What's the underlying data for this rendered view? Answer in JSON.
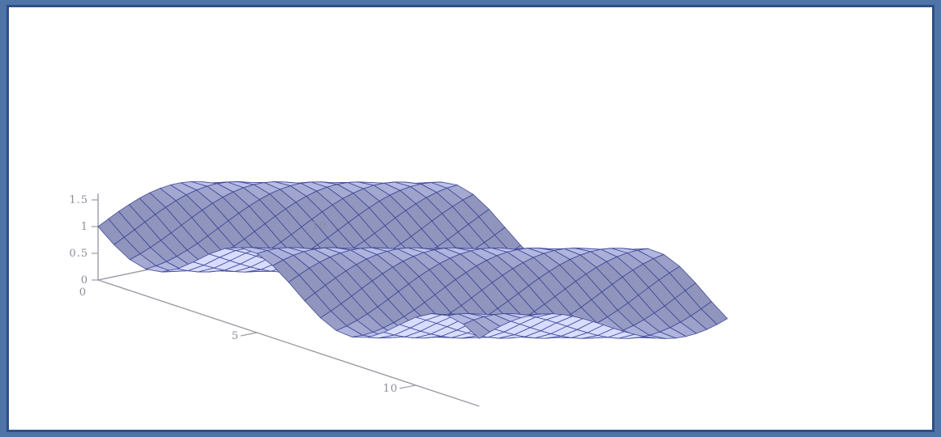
{
  "chart_data": {
    "type": "surface-3d",
    "title": "",
    "xlabel": "",
    "ylabel": "",
    "zlabel": "",
    "x_range": [
      0,
      10
    ],
    "y_range": [
      0,
      12
    ],
    "zlim": [
      0,
      1.5
    ],
    "grid": false,
    "legend": "none",
    "x_ticks": [
      {
        "value": 0,
        "label": "0"
      },
      {
        "value": 10,
        "label": "10"
      }
    ],
    "y_ticks": [
      {
        "value": 0,
        "label": "0"
      },
      {
        "value": 5,
        "label": "5"
      },
      {
        "value": 10,
        "label": "10"
      }
    ],
    "z_ticks": [
      {
        "value": 0,
        "label": "0"
      },
      {
        "value": 0.5,
        "label": "0.5"
      },
      {
        "value": 1,
        "label": "1"
      },
      {
        "value": 1.5,
        "label": "1.5"
      }
    ],
    "surface": {
      "function": "1 + 0.5*sin(0.5*x - y)",
      "mesh_lines": 24,
      "fill_color": "#b8bde6",
      "line_color": "#3c4490"
    }
  }
}
